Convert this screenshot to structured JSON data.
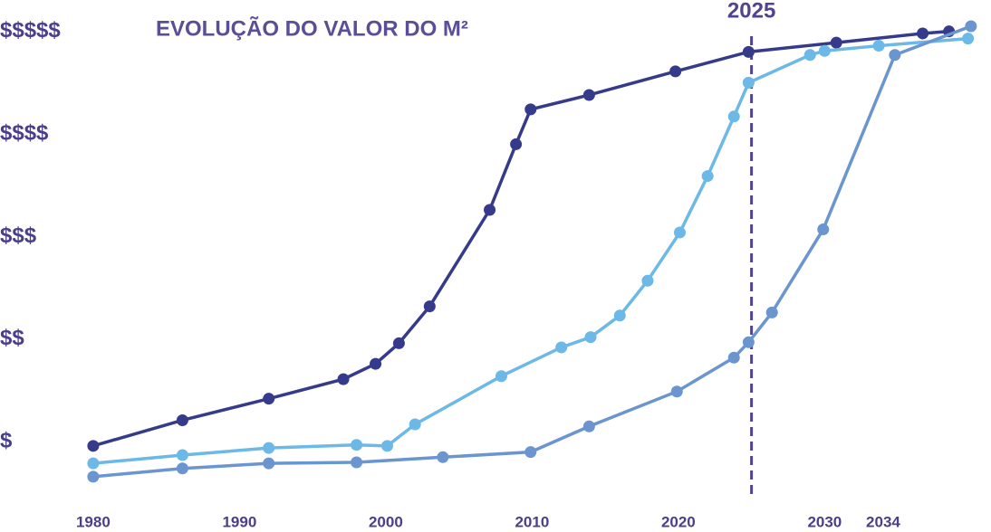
{
  "chart_data": {
    "type": "line",
    "title": "EVOLUÇÃO DO VALOR DO M²",
    "xlim": [
      1974,
      2041
    ],
    "xticks": [
      1980,
      1990,
      2000,
      2010,
      2020,
      2030,
      2034
    ],
    "ylim": [
      0.5,
      5.2
    ],
    "yticks": [
      {
        "value": 1,
        "label": "$"
      },
      {
        "value": 2,
        "label": "$$"
      },
      {
        "value": 3,
        "label": "$$$"
      },
      {
        "value": 4,
        "label": "$$$$"
      },
      {
        "value": 5,
        "label": "$$$$$"
      }
    ],
    "annotations": [
      {
        "label": "2025",
        "x": 2025,
        "color": "#4f4491"
      }
    ],
    "series": [
      {
        "color": "#353b8a",
        "x": [
          1980,
          1986.1,
          1992.0,
          1997.1,
          1999.3,
          2000.9,
          2003.0,
          2007.1,
          2008.9,
          2009.9,
          2013.9,
          2019.8,
          2024.8,
          2030.8,
          2036.7,
          2038.5
        ],
        "values": [
          0.96,
          1.21,
          1.42,
          1.61,
          1.76,
          1.96,
          2.32,
          3.26,
          3.9,
          4.24,
          4.38,
          4.61,
          4.8,
          4.89,
          4.98,
          5.0
        ]
      },
      {
        "color": "#6cb8e6",
        "x": [
          1980,
          1986.1,
          1992.0,
          1998.0,
          2000.1,
          2002.0,
          2007.9,
          2012.0,
          2014.0,
          2016.0,
          2017.9,
          2020.1,
          2022.0,
          2023.8,
          2024.8,
          2029.0,
          2030.0,
          2033.7,
          2039.8
        ],
        "values": [
          0.79,
          0.87,
          0.94,
          0.97,
          0.96,
          1.17,
          1.64,
          1.92,
          2.02,
          2.23,
          2.57,
          3.04,
          3.59,
          4.17,
          4.5,
          4.77,
          4.81,
          4.86,
          4.93
        ]
      },
      {
        "color": "#6b95cf",
        "x": [
          1980,
          1986.1,
          1992.0,
          1998.0,
          2003.9,
          2009.9,
          2013.9,
          2019.9,
          2023.8,
          2024.8,
          2026.4,
          2029.9,
          2034.8,
          2040.0
        ],
        "values": [
          0.66,
          0.74,
          0.79,
          0.8,
          0.85,
          0.9,
          1.15,
          1.49,
          1.82,
          1.97,
          2.26,
          3.07,
          4.77,
          5.05
        ]
      }
    ]
  }
}
